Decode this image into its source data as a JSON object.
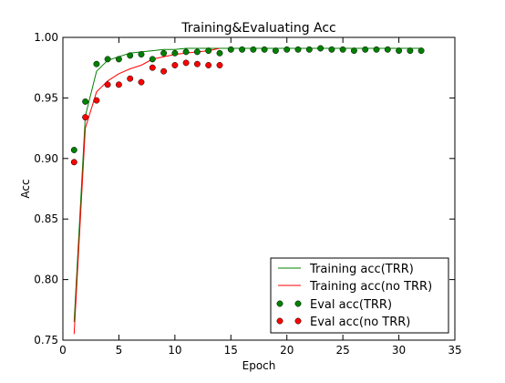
{
  "chart_data": {
    "type": "line",
    "title": "Training&Evaluating Acc",
    "xlabel": "Epoch",
    "ylabel": "Acc",
    "xlim": [
      0,
      35
    ],
    "ylim": [
      0.75,
      1.0
    ],
    "xticks": [
      0,
      5,
      10,
      15,
      20,
      25,
      30,
      35
    ],
    "yticks": [
      0.75,
      0.8,
      0.85,
      0.9,
      0.95,
      1.0
    ],
    "xtick_labels": [
      "0",
      "5",
      "10",
      "15",
      "20",
      "25",
      "30",
      "35"
    ],
    "ytick_labels": [
      "0.75",
      "0.80",
      "0.85",
      "0.90",
      "0.95",
      "1.00"
    ],
    "grid": false,
    "legend_position": "lower-right",
    "series": [
      {
        "name": "Training acc(TRR)",
        "kind": "line",
        "color": "#008000",
        "x": [
          1,
          2,
          3,
          4,
          5,
          6,
          7,
          8,
          9,
          10,
          11,
          12,
          13,
          14,
          15,
          16,
          17,
          18,
          19,
          20,
          21,
          22,
          23,
          24,
          25,
          26,
          27,
          28,
          29,
          30,
          31,
          32
        ],
        "y": [
          0.765,
          0.935,
          0.972,
          0.981,
          0.984,
          0.987,
          0.988,
          0.989,
          0.99,
          0.99,
          0.991,
          0.991,
          0.991,
          0.991,
          0.991,
          0.991,
          0.991,
          0.991,
          0.991,
          0.991,
          0.991,
          0.991,
          0.991,
          0.991,
          0.991,
          0.991,
          0.991,
          0.991,
          0.991,
          0.991,
          0.991,
          0.991
        ]
      },
      {
        "name": "Training acc(no TRR)",
        "kind": "line",
        "color": "#ff0000",
        "x": [
          1,
          2,
          3,
          4,
          5,
          6,
          7,
          8,
          9,
          10,
          11,
          12,
          13,
          14
        ],
        "y": [
          0.755,
          0.925,
          0.955,
          0.964,
          0.97,
          0.974,
          0.977,
          0.982,
          0.984,
          0.986,
          0.987,
          0.988,
          0.989,
          0.991
        ]
      },
      {
        "name": "Eval acc(TRR)",
        "kind": "scatter",
        "color": "#008000",
        "x": [
          1,
          2,
          3,
          4,
          5,
          6,
          7,
          8,
          9,
          10,
          11,
          12,
          13,
          14,
          15,
          16,
          17,
          18,
          19,
          20,
          21,
          22,
          23,
          24,
          25,
          26,
          27,
          28,
          29,
          30,
          31,
          32
        ],
        "y": [
          0.907,
          0.947,
          0.978,
          0.982,
          0.982,
          0.985,
          0.986,
          0.982,
          0.987,
          0.987,
          0.988,
          0.988,
          0.989,
          0.987,
          0.99,
          0.99,
          0.99,
          0.99,
          0.989,
          0.99,
          0.99,
          0.99,
          0.991,
          0.99,
          0.99,
          0.989,
          0.99,
          0.99,
          0.99,
          0.989,
          0.989,
          0.989
        ]
      },
      {
        "name": "Eval acc(no TRR)",
        "kind": "scatter",
        "color": "#ff0000",
        "x": [
          1,
          2,
          3,
          4,
          5,
          6,
          7,
          8,
          9,
          10,
          11,
          12,
          13,
          14
        ],
        "y": [
          0.897,
          0.934,
          0.948,
          0.961,
          0.961,
          0.966,
          0.963,
          0.975,
          0.972,
          0.977,
          0.979,
          0.978,
          0.977,
          0.977
        ]
      }
    ]
  }
}
